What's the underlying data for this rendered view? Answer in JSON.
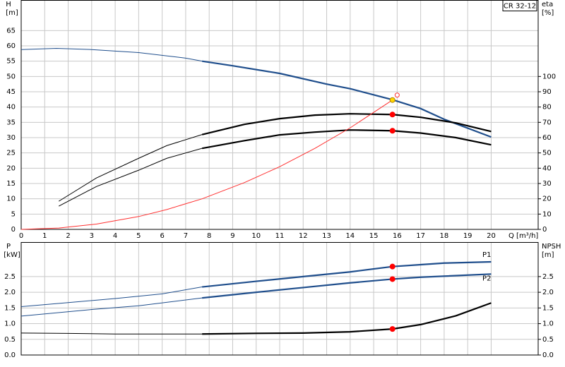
{
  "chart_data": [
    {
      "type": "line",
      "title": "CR 32-12",
      "xlabel": "Q [m³/h]",
      "ylabel": "H",
      "yunit": "[m]",
      "y2label": "eta",
      "y2unit": "[%]",
      "xlim": [
        0,
        22
      ],
      "xticks": [
        0,
        1,
        2,
        3,
        4,
        5,
        6,
        7,
        8,
        9,
        10,
        11,
        12,
        13,
        14,
        15,
        16,
        17,
        18,
        19,
        20
      ],
      "ylim": [
        0,
        75
      ],
      "yticks": [
        0,
        5,
        10,
        15,
        20,
        25,
        30,
        35,
        40,
        45,
        50,
        55,
        60,
        65
      ],
      "y2lim": [
        0,
        150
      ],
      "y2ticks": [
        0,
        10,
        20,
        30,
        40,
        50,
        60,
        70,
        80,
        90,
        100
      ],
      "grid": true,
      "emphasis_from_x": 7.7,
      "series": [
        {
          "color": "#1f4e8c",
          "x": [
            0,
            1.5,
            3,
            5,
            7,
            7.7,
            9,
            11,
            13,
            14,
            15.8,
            17,
            18,
            20
          ],
          "values": [
            58.8,
            59.2,
            58.8,
            57.8,
            56,
            55,
            53.5,
            51,
            47.5,
            46,
            42.4,
            39.5,
            36,
            30.2
          ]
        },
        {
          "color": "#000000",
          "axis": "y2",
          "x": [
            1.6,
            3.2,
            5,
            6.2,
            7.7,
            9.5,
            11,
            12.5,
            14,
            15.8,
            17,
            18.5,
            20
          ],
          "values": [
            18.4,
            33.6,
            46.5,
            54.8,
            62,
            68.7,
            72.4,
            74.7,
            75.6,
            75.1,
            73.3,
            69.6,
            64
          ]
        },
        {
          "color": "#000000",
          "axis": "y2",
          "x": [
            1.6,
            3.2,
            5,
            6.2,
            7.7,
            9.5,
            11,
            12.5,
            14,
            15.8,
            17,
            18.5,
            20
          ],
          "values": [
            15.2,
            28,
            38.7,
            46.5,
            53,
            58,
            61.8,
            63.6,
            65,
            64.5,
            63,
            60,
            55.3
          ]
        },
        {
          "color": "#ff3030",
          "x": [
            0,
            1.6,
            3.2,
            5,
            6.2,
            7.7,
            9.5,
            11,
            12.5,
            14,
            15.8
          ],
          "values": [
            0,
            0.43,
            1.73,
            4.2,
            6.5,
            10,
            15.3,
            20.5,
            26.5,
            33.2,
            42.3
          ]
        }
      ],
      "points": [
        {
          "x": 15.8,
          "y": 42.3,
          "color": "#ffd700"
        },
        {
          "x": 16.0,
          "y": 43.9,
          "color": "none"
        },
        {
          "x": 15.8,
          "y": 75.1,
          "axis": "y2",
          "color": "#ff0000"
        },
        {
          "x": 15.8,
          "y": 64.5,
          "axis": "y2",
          "color": "#ff0000"
        }
      ]
    },
    {
      "type": "line",
      "ylabel": "P",
      "yunit": "[kW]",
      "y2label": "NPSH",
      "y2unit": "[m]",
      "xlim": [
        0,
        22
      ],
      "ylim": [
        0,
        3.6
      ],
      "yticks": [
        {
          "value": 0,
          "label": "0.0"
        },
        0.5,
        {
          "value": 1,
          "label": "1.0"
        },
        1.5,
        {
          "value": 2,
          "label": "2.0"
        },
        2.5
      ],
      "y2lim": [
        0,
        3.6
      ],
      "y2ticks": [
        {
          "value": 0,
          "label": "0.0"
        },
        0.5,
        {
          "value": 1,
          "label": "1.0"
        },
        1.5,
        {
          "value": 2,
          "label": "2.0"
        },
        2.5
      ],
      "grid": true,
      "emphasis_from_x": 7.7,
      "series": [
        {
          "name": "P1",
          "label_pos": "above",
          "color": "#1f4e8c",
          "x": [
            0,
            2,
            4,
            6,
            7.7,
            10,
            12,
            14,
            15.8,
            17,
            18,
            20
          ],
          "values": [
            1.54,
            1.67,
            1.8,
            1.95,
            2.17,
            2.35,
            2.5,
            2.65,
            2.82,
            2.88,
            2.93,
            2.97
          ]
        },
        {
          "name": "P2",
          "label_pos": "below",
          "color": "#1f4e8c",
          "x": [
            0,
            3,
            5,
            7.7,
            10,
            12,
            14,
            15.8,
            17,
            20
          ],
          "values": [
            1.24,
            1.45,
            1.57,
            1.82,
            2,
            2.15,
            2.3,
            2.42,
            2.48,
            2.58
          ]
        },
        {
          "color": "#000000",
          "axis": "y2",
          "x": [
            0,
            2,
            4,
            6,
            7.7,
            10,
            12,
            14,
            15.8,
            17,
            18.5,
            20
          ],
          "values": [
            0.7,
            0.69,
            0.67,
            0.67,
            0.67,
            0.69,
            0.7,
            0.74,
            0.83,
            0.97,
            1.25,
            1.66
          ]
        }
      ],
      "points": [
        {
          "x": 15.8,
          "y": 2.82,
          "color": "#ff0000"
        },
        {
          "x": 15.8,
          "y": 2.42,
          "color": "#ff0000"
        },
        {
          "x": 15.8,
          "y": 0.83,
          "axis": "y2",
          "color": "#ff0000"
        }
      ]
    }
  ]
}
